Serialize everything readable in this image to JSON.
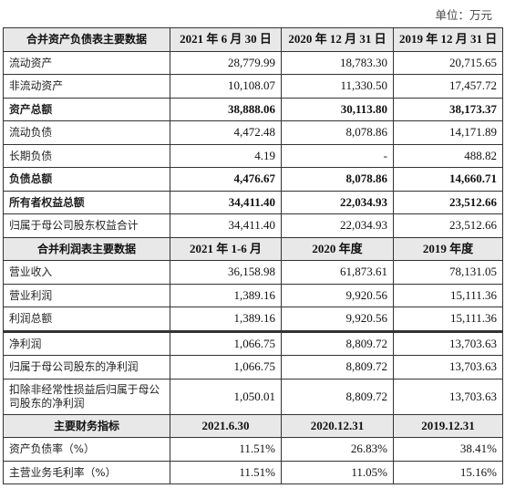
{
  "unit": "单位：万元",
  "sections": [
    {
      "header": [
        "合并资产负债表主要数据",
        "2021 年 6 月 30 日",
        "2020 年 12 月 31 日",
        "2019 年 12 月 31 日"
      ],
      "rows": [
        {
          "label": "流动资产",
          "values": [
            "28,779.99",
            "18,783.30",
            "20,715.65"
          ],
          "bold": false
        },
        {
          "label": "非流动资产",
          "values": [
            "10,108.07",
            "11,330.50",
            "17,457.72"
          ],
          "bold": false
        },
        {
          "label": "资产总额",
          "values": [
            "38,888.06",
            "30,113.80",
            "38,173.37"
          ],
          "bold": true
        },
        {
          "label": "流动负债",
          "values": [
            "4,472.48",
            "8,078.86",
            "14,171.89"
          ],
          "bold": false
        },
        {
          "label": "长期负债",
          "values": [
            "4.19",
            "-",
            "488.82"
          ],
          "bold": false
        },
        {
          "label": "负债总额",
          "values": [
            "4,476.67",
            "8,078.86",
            "14,660.71"
          ],
          "bold": true
        },
        {
          "label": "所有者权益总额",
          "values": [
            "34,411.40",
            "22,034.93",
            "23,512.66"
          ],
          "bold": true
        },
        {
          "label": "归属于母公司股东权益合计",
          "values": [
            "34,411.40",
            "22,034.93",
            "23,512.66"
          ],
          "bold": false
        }
      ]
    },
    {
      "header": [
        "合并利润表主要数据",
        "2021 年 1-6 月",
        "2020 年度",
        "2019 年度"
      ],
      "rows": [
        {
          "label": "营业收入",
          "values": [
            "36,158.98",
            "61,873.61",
            "78,131.05"
          ],
          "bold": false
        },
        {
          "label": "营业利润",
          "values": [
            "1,389.16",
            "9,920.56",
            "15,111.36"
          ],
          "bold": false
        },
        {
          "label": "利润总额",
          "values": [
            "1,389.16",
            "9,920.56",
            "15,111.36"
          ],
          "bold": false
        },
        {
          "label": "净利润",
          "values": [
            "1,066.75",
            "8,809.72",
            "13,703.63"
          ],
          "bold": false
        },
        {
          "label": "归属于母公司股东的净利润",
          "values": [
            "1,066.75",
            "8,809.72",
            "13,703.63"
          ],
          "bold": false
        },
        {
          "label": "扣除非经常性损益后归属于母公司股东的净利润",
          "values": [
            "1,050.01",
            "8,809.72",
            "13,703.63"
          ],
          "bold": false
        }
      ]
    },
    {
      "header": [
        "主要财务指标",
        "2021.6.30",
        "2020.12.31",
        "2019.12.31"
      ],
      "rows": [
        {
          "label": "资产负债率（%）",
          "values": [
            "11.51%",
            "26.83%",
            "38.41%"
          ],
          "bold": false
        },
        {
          "label": "主营业务毛利率（%）",
          "values": [
            "11.51%",
            "11.05%",
            "15.16%"
          ],
          "bold": false
        }
      ]
    }
  ]
}
